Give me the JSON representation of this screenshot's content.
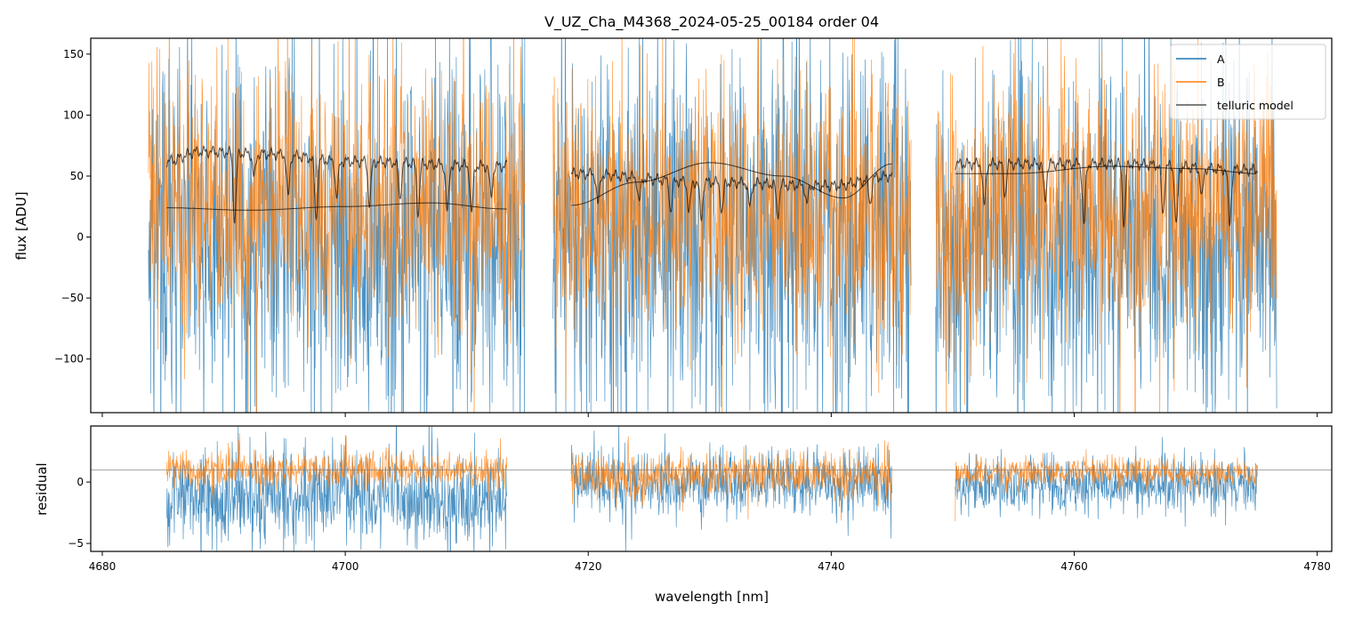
{
  "chart_data": {
    "type": "line",
    "title": "V_UZ_Cha_M4368_2024-05-25_00184  order 04",
    "xlabel": "wavelength [nm]",
    "xlim": [
      4679.05,
      4781.2
    ],
    "xticks": [
      4680,
      4700,
      4720,
      4740,
      4760,
      4780
    ],
    "colors": {
      "A": "#1f77b4",
      "B": "#ff7f0e",
      "telluric": "#333333",
      "hline": "#808080"
    },
    "legend": {
      "placement": "top-right",
      "entries": [
        "A",
        "B",
        "telluric model"
      ]
    },
    "top_panel": {
      "ylabel": "flux [ADU]",
      "ylim": [
        -144,
        163
      ],
      "yticks": [
        -100,
        -50,
        0,
        50,
        100,
        150
      ],
      "segments": [
        [
          4683.8,
          4714.8
        ],
        [
          4717.1,
          4746.6
        ],
        [
          4748.6,
          4776.7
        ]
      ],
      "series": [
        {
          "name": "A",
          "mean": [
            -5,
            5,
            -2
          ],
          "std": [
            75,
            80,
            70
          ]
        },
        {
          "name": "B",
          "mean": [
            25,
            20,
            22
          ],
          "std": [
            55,
            55,
            55
          ]
        }
      ],
      "telluric_model": {
        "segments": [
          [
            4685.3,
            4713.3
          ],
          [
            4718.6,
            4745.0
          ],
          [
            4750.2,
            4775.1
          ]
        ],
        "level": [
          [
            4685.3,
            62
          ],
          [
            4688,
            70
          ],
          [
            4694,
            68
          ],
          [
            4700,
            62
          ],
          [
            4713.3,
            58
          ],
          [
            4718.6,
            52
          ],
          [
            4730,
            45
          ],
          [
            4740,
            42
          ],
          [
            4745.0,
            50
          ],
          [
            4750.2,
            60
          ],
          [
            4763,
            60
          ],
          [
            4775.1,
            55
          ]
        ],
        "dips": [
          [
            4690.9,
            55
          ],
          [
            4692.5,
            20
          ],
          [
            4695.3,
            35
          ],
          [
            4697.6,
            50
          ],
          [
            4699.3,
            30
          ],
          [
            4702.0,
            35
          ],
          [
            4704.5,
            30
          ],
          [
            4706.0,
            40
          ],
          [
            4708.4,
            40
          ],
          [
            4710.4,
            40
          ],
          [
            4712.0,
            25
          ],
          [
            4720.8,
            25
          ],
          [
            4724.2,
            20
          ],
          [
            4726.8,
            25
          ],
          [
            4728.3,
            25
          ],
          [
            4729.3,
            30
          ],
          [
            4731.0,
            25
          ],
          [
            4733.3,
            20
          ],
          [
            4735.6,
            25
          ],
          [
            4738.0,
            15
          ],
          [
            4743.2,
            20
          ],
          [
            4752.6,
            35
          ],
          [
            4754.3,
            25
          ],
          [
            4757.6,
            30
          ],
          [
            4760.8,
            50
          ],
          [
            4764.1,
            50
          ],
          [
            4767.3,
            40
          ],
          [
            4768.4,
            50
          ],
          [
            4770.5,
            25
          ],
          [
            4772.8,
            45
          ]
        ]
      },
      "continuum": [
        {
          "segment": [
            4685.3,
            4713.3
          ],
          "points": [
            [
              4685.3,
              24
            ],
            [
              4692,
              22
            ],
            [
              4700,
              25
            ],
            [
              4707,
              28
            ],
            [
              4713.3,
              23
            ]
          ]
        },
        {
          "segment": [
            4718.6,
            4745.0
          ],
          "points": [
            [
              4718.6,
              26
            ],
            [
              4724,
              45
            ],
            [
              4730,
              61
            ],
            [
              4736,
              50
            ],
            [
              4741,
              32
            ],
            [
              4745.0,
              60
            ]
          ]
        },
        {
          "segment": [
            4750.2,
            4775.1
          ],
          "points": [
            [
              4750.2,
              52
            ],
            [
              4755,
              52
            ],
            [
              4763,
              58
            ],
            [
              4770,
              56
            ],
            [
              4775.1,
              52
            ]
          ]
        }
      ]
    },
    "bottom_panel": {
      "ylabel": "residual",
      "ylim": [
        -5.65,
        4.57
      ],
      "yticks": [
        -5,
        0
      ],
      "hline": 1.0,
      "segments": [
        [
          4685.3,
          4713.3
        ],
        [
          4718.6,
          4745.0
        ],
        [
          4750.2,
          4775.1
        ]
      ],
      "series": [
        {
          "name": "A",
          "mean": [
            -1.3,
            0.0,
            -0.2
          ],
          "std": [
            1.9,
            1.3,
            1.1
          ]
        },
        {
          "name": "B",
          "mean": [
            1.0,
            0.6,
            0.8
          ],
          "std": [
            0.7,
            0.9,
            0.6
          ]
        }
      ]
    }
  }
}
